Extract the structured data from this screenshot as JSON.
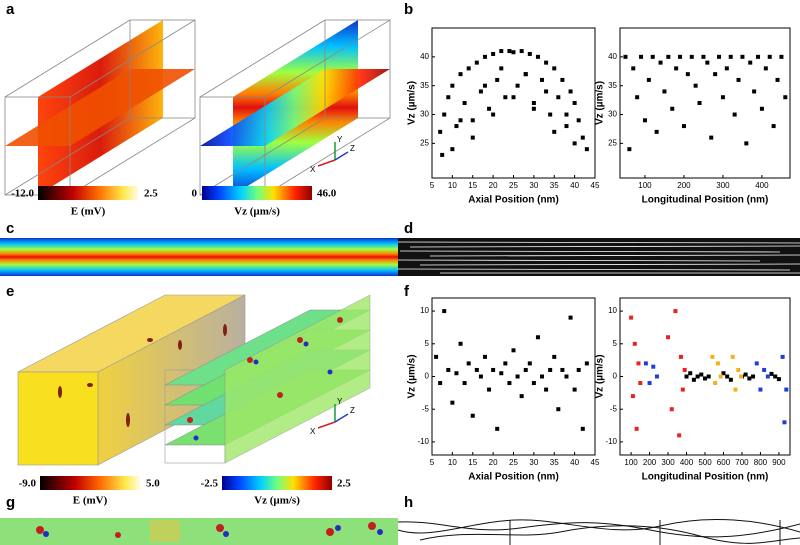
{
  "panel_labels": [
    "a",
    "b",
    "c",
    "d",
    "e",
    "f",
    "g",
    "h"
  ],
  "colorbars": [
    {
      "min": "-12.0",
      "max": "2.5",
      "label": "E (mV)"
    },
    {
      "min": "0",
      "max": "46.0",
      "label": "Vz (µm/s)"
    },
    {
      "min": "-9.0",
      "max": "5.0",
      "label": "E (mV)"
    },
    {
      "min": "-2.5",
      "max": "2.5",
      "label": "Vz (µm/s)"
    }
  ],
  "axes_triad": [
    "X",
    "Y",
    "Z"
  ],
  "chart_data": [
    {
      "type": "scatter",
      "x_label": "Axial Position (nm)",
      "y_label": "Vz (µm/s)",
      "color": "#000000",
      "xlim": [
        5,
        45
      ],
      "ylim": [
        19,
        45
      ],
      "xticks": [
        5,
        10,
        15,
        20,
        25,
        30,
        35,
        40,
        45
      ],
      "yticks": [
        25,
        30,
        35,
        40
      ],
      "x": [
        7,
        7.5,
        8,
        9,
        10,
        11,
        12,
        13,
        14,
        15,
        16,
        17,
        18,
        19,
        20,
        21,
        22,
        23,
        24,
        25,
        26,
        27,
        28,
        29,
        30,
        31,
        32,
        33,
        34,
        35,
        36,
        37,
        38,
        39,
        40,
        41,
        42,
        43,
        10,
        15,
        20,
        25,
        30,
        35,
        40,
        12,
        18,
        22,
        28,
        33,
        38
      ],
      "values": [
        27,
        23,
        30,
        33,
        35,
        28,
        37,
        32,
        38,
        29,
        39,
        34,
        40,
        31,
        40.5,
        36,
        41,
        33,
        41,
        40.8,
        35,
        41,
        37,
        40.5,
        32,
        40,
        36,
        39,
        30,
        38,
        33,
        36,
        28,
        34,
        32,
        29,
        26,
        24,
        24,
        26,
        30,
        33,
        31,
        27,
        25,
        29,
        35,
        38,
        37,
        34,
        30
      ]
    },
    {
      "type": "scatter",
      "x_label": "Longitudinal Position (nm)",
      "y_label": "Vz (µm/s)",
      "color": "#000000",
      "xlim": [
        36,
        472
      ],
      "ylim": [
        19,
        45
      ],
      "xticks": [
        100,
        200,
        300,
        400
      ],
      "yticks": [
        25,
        30,
        35,
        40
      ],
      "x": [
        50,
        60,
        70,
        80,
        90,
        100,
        110,
        120,
        130,
        140,
        150,
        160,
        170,
        180,
        190,
        200,
        210,
        220,
        230,
        240,
        250,
        260,
        270,
        280,
        290,
        300,
        310,
        320,
        330,
        340,
        350,
        360,
        370,
        380,
        390,
        400,
        410,
        420,
        430,
        440,
        450,
        460
      ],
      "values": [
        40,
        24,
        38,
        33,
        40,
        29,
        36,
        40,
        27,
        39,
        34,
        40,
        31,
        38,
        40,
        28,
        37,
        40,
        35,
        32,
        40,
        39,
        26,
        37,
        40,
        33,
        38,
        40,
        30,
        36,
        40,
        25,
        39,
        34,
        40,
        31,
        38,
        40,
        28,
        36,
        40,
        33
      ]
    },
    {
      "type": "scatter",
      "x_label": "Axial Position (nm)",
      "y_label": "Vz (µm/s)",
      "color": "#000000",
      "xlim": [
        5,
        45
      ],
      "ylim": [
        -12,
        12
      ],
      "xticks": [
        5,
        10,
        15,
        20,
        25,
        30,
        35,
        40,
        45
      ],
      "yticks": [
        -10,
        -5,
        0,
        5,
        10
      ],
      "x": [
        6,
        7,
        8,
        9,
        10,
        11,
        12,
        13,
        14,
        15,
        16,
        17,
        18,
        19,
        20,
        21,
        22,
        23,
        24,
        25,
        26,
        27,
        28,
        29,
        30,
        31,
        32,
        33,
        34,
        35,
        36,
        37,
        38,
        39,
        40,
        41,
        42,
        43
      ],
      "values": [
        3,
        -1,
        10,
        1,
        -4,
        0.5,
        5,
        -1,
        2,
        -6,
        1,
        0,
        3,
        -2,
        1,
        -8,
        0.5,
        2,
        -1,
        4,
        0,
        -3,
        1,
        2,
        -1,
        6,
        0,
        -2,
        1,
        3,
        -5,
        1,
        0,
        9,
        -2,
        1,
        -8,
        2
      ]
    },
    {
      "type": "scatter",
      "x_label": "Longitudinal Position (nm)",
      "y_label": "Vz (µm/s)",
      "xlim": [
        40,
        960
      ],
      "ylim": [
        -12,
        12
      ],
      "xticks": [
        100,
        200,
        300,
        400,
        500,
        600,
        700,
        800,
        900
      ],
      "yticks": [
        -10,
        -5,
        0,
        5,
        10
      ],
      "series": [
        {
          "color": "#000000",
          "x": [
            400,
            420,
            440,
            460,
            480,
            500,
            520,
            600,
            620,
            640,
            700,
            720,
            740,
            760,
            860,
            880,
            900
          ],
          "values": [
            0,
            0.5,
            -0.5,
            0,
            0.3,
            -0.3,
            0,
            0.5,
            0,
            -0.5,
            0,
            0.3,
            -0.3,
            0,
            0.4,
            0,
            -0.4
          ]
        },
        {
          "color": "#e8231f",
          "x": [
            100,
            110,
            120,
            130,
            140,
            150,
            300,
            320,
            340,
            360,
            370,
            380,
            390
          ],
          "values": [
            9,
            -3,
            5,
            -8,
            2,
            -1,
            6,
            -5,
            10,
            -9,
            3,
            -2,
            1
          ]
        },
        {
          "color": "#1d3fd6",
          "x": [
            180,
            200,
            220,
            240,
            780,
            800,
            820,
            840,
            920,
            930,
            940
          ],
          "values": [
            2,
            -1,
            1.5,
            0,
            2,
            -2,
            1,
            0,
            3,
            -7,
            -2
          ]
        },
        {
          "color": "#f2b21b",
          "x": [
            540,
            555,
            570,
            585,
            650,
            665,
            680,
            695
          ],
          "values": [
            3,
            -1,
            2,
            0,
            3,
            -2,
            1,
            0
          ]
        }
      ]
    }
  ]
}
